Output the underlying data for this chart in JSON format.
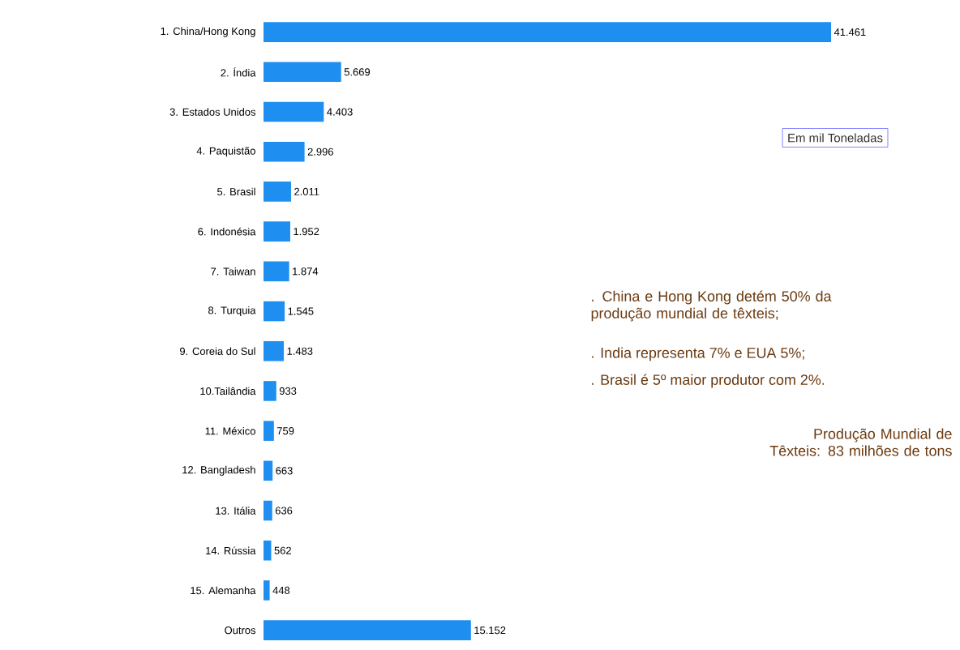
{
  "chart_data": {
    "type": "bar",
    "orientation": "horizontal",
    "categories": [
      "1. China/Hong Kong",
      "2. Índia",
      "3. Estados Unidos",
      "4. Paquistão",
      "5. Brasil",
      "6. Indonésia",
      "7. Taiwan",
      "8. Turquia",
      "9. Coreia do Sul",
      "10.Tailândia",
      "11. México",
      "12. Bangladesh",
      "13. Itália",
      "14. Rússia",
      "15. Alemanha",
      "Outros"
    ],
    "values": [
      41461,
      5669,
      4403,
      2996,
      2011,
      1952,
      1874,
      1545,
      1483,
      933,
      759,
      663,
      636,
      562,
      448,
      15152
    ],
    "value_labels": [
      "41.461",
      "5.669",
      "4.403",
      "2.996",
      "2.011",
      "1.952",
      "1.874",
      "1.545",
      "1.483",
      "933",
      "759",
      "663",
      "636",
      "562",
      "448",
      "15.152"
    ],
    "color": "#1e8ff0",
    "annotations": [
      "Em mil Toneladas",
      ". China e Hong Kong detém 50% da produção mundial de têxteis;",
      ". India representa 7% e EUA 5%;",
      ". Brasil é 5º maior produtor com 2%.",
      "Produção Mundial de Têxteis: 83 milhões de tons"
    ]
  }
}
